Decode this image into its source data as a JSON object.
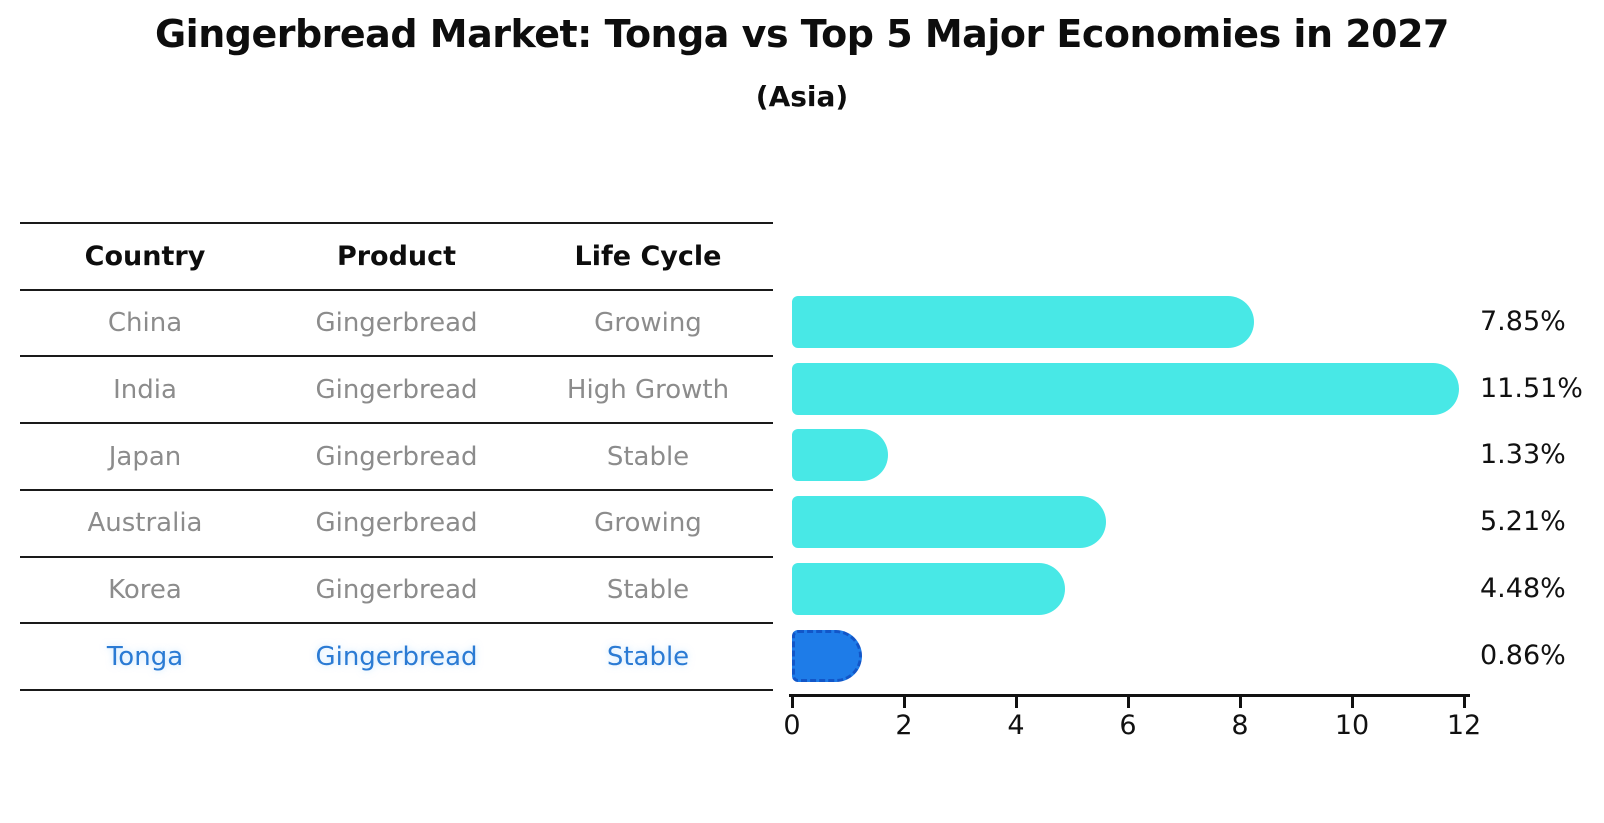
{
  "title": "Gingerbread Market: Tonga vs Top 5 Major Economies in 2027",
  "subtitle": "(Asia)",
  "table": {
    "headers": [
      "Country",
      "Product",
      "Life Cycle"
    ],
    "rows": [
      {
        "country": "China",
        "product": "Gingerbread",
        "life_cycle": "Growing"
      },
      {
        "country": "India",
        "product": "Gingerbread",
        "life_cycle": "High Growth"
      },
      {
        "country": "Japan",
        "product": "Gingerbread",
        "life_cycle": "Stable"
      },
      {
        "country": "Australia",
        "product": "Gingerbread",
        "life_cycle": "Growing"
      },
      {
        "country": "Korea",
        "product": "Gingerbread",
        "life_cycle": "Stable"
      },
      {
        "country": "Tonga",
        "product": "Gingerbread",
        "life_cycle": "Stable"
      }
    ],
    "highlight_country": "Tonga"
  },
  "chart_data": {
    "type": "bar",
    "orientation": "horizontal",
    "title": "Gingerbread Market: Tonga vs Top 5 Major Economies in 2027",
    "subtitle": "(Asia)",
    "categories": [
      "China",
      "India",
      "Japan",
      "Australia",
      "Korea",
      "Tonga"
    ],
    "values": [
      7.85,
      11.51,
      1.33,
      5.21,
      4.48,
      0.86
    ],
    "value_labels": [
      "7.85%",
      "11.51%",
      "1.33%",
      "5.21%",
      "4.48%",
      "0.86%"
    ],
    "xlim": [
      0,
      12
    ],
    "xticks": [
      0,
      2,
      4,
      6,
      8,
      10,
      12
    ],
    "grid": false,
    "legend": false,
    "highlight_index": 5,
    "bar_color": "#48E8E6",
    "highlight_bar_color": "#1E7CE8",
    "highlight_border_color": "#1256C8",
    "highlight_text_color": "#2B7BD4",
    "text_color": "#111111",
    "muted_text_color": "#8C8C8C"
  }
}
